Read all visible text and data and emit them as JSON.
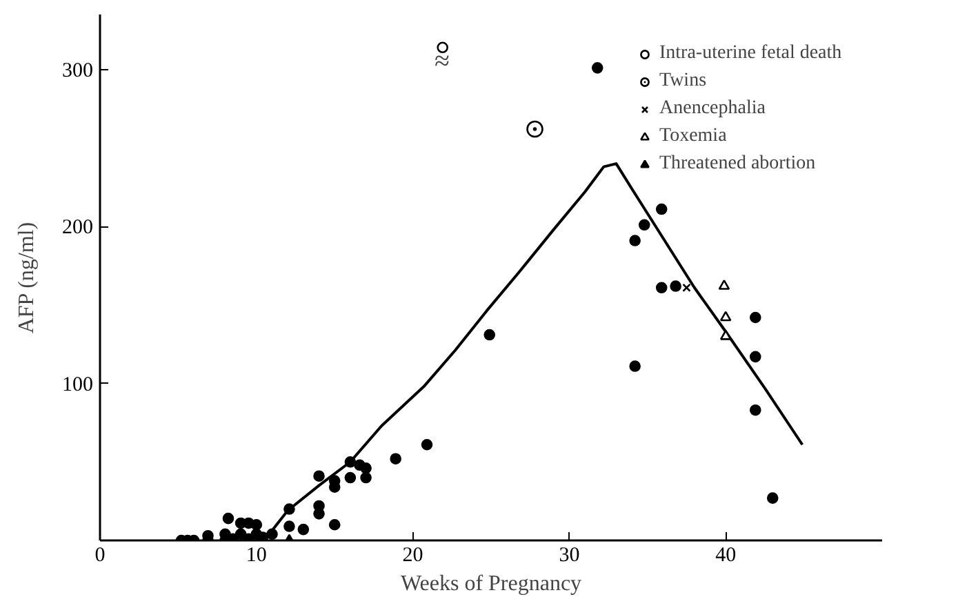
{
  "chart_data": {
    "type": "scatter",
    "xlabel": "Weeks of Pregnancy",
    "ylabel": "AFP (ng/ml)",
    "xlim": [
      0,
      50
    ],
    "ylim": [
      0,
      335
    ],
    "xticks": [
      0,
      10,
      20,
      30,
      40
    ],
    "yticks": [
      100,
      200,
      300
    ],
    "grid": false,
    "legend": "top right",
    "series": [
      {
        "marker": "circle",
        "color": "#000000",
        "x": [
          5.2,
          5.6,
          6.0,
          6.9,
          6.9,
          8.0,
          8.0,
          8.2,
          8.5,
          9.0,
          9.5,
          9.0,
          9.5,
          10.0,
          10.0,
          10.4,
          11.0,
          12.1,
          12.1,
          13.0,
          14.0,
          14.0,
          14.0,
          15.0,
          15.0,
          15.0,
          16.0,
          16.0,
          16.6,
          17.0,
          17.0,
          18.9,
          20.9,
          24.9,
          34.2,
          34.8,
          35.9,
          35.9,
          36.8,
          34.2,
          41.9,
          41.9,
          41.9,
          43.0,
          31.8
        ],
        "values": [
          0,
          0,
          0,
          0,
          3,
          0,
          4,
          14,
          1,
          11,
          11,
          4,
          1,
          10,
          4,
          2,
          4,
          20,
          9,
          7,
          41,
          22,
          17,
          38,
          34,
          10,
          50,
          40,
          48,
          46,
          40,
          52,
          61,
          131,
          191,
          201,
          211,
          161,
          162,
          111,
          142,
          117,
          83,
          27,
          301
        ]
      },
      {
        "type": "line",
        "color": "#000000",
        "line_style": "solid",
        "x": [
          10.5,
          12,
          14,
          16,
          18,
          20.7,
          22.7,
          24.7,
          26.8,
          29,
          31,
          32.2,
          33,
          34,
          38,
          40,
          42.5,
          44.9
        ],
        "values": [
          0,
          19,
          35,
          50,
          73,
          98,
          121,
          146,
          171,
          198,
          222,
          238,
          240,
          224,
          161,
          133,
          97,
          61
        ]
      },
      {
        "name": "Intra-uterine fetal death",
        "marker": "circle_open",
        "color": "#000000",
        "x": [
          21.9
        ],
        "values": [
          314
        ]
      },
      {
        "name": "Twins",
        "marker": "circle_dot",
        "color": "#000000",
        "x": [
          27.8
        ],
        "values": [
          262
        ]
      },
      {
        "name": "Anencephalia",
        "marker": "x",
        "color": "#000000",
        "x": [
          37.5
        ],
        "values": [
          161
        ]
      },
      {
        "name": "Toxemia",
        "marker": "triangle_open",
        "color": "#000000",
        "x": [
          39.9,
          40.0,
          40.0
        ],
        "values": [
          162,
          142,
          130
        ]
      },
      {
        "name": "Threatened abortion",
        "marker": "triangle",
        "color": "#000000",
        "x": [
          12.1
        ],
        "values": [
          0
        ]
      }
    ],
    "annotations": [
      "≈"
    ]
  }
}
